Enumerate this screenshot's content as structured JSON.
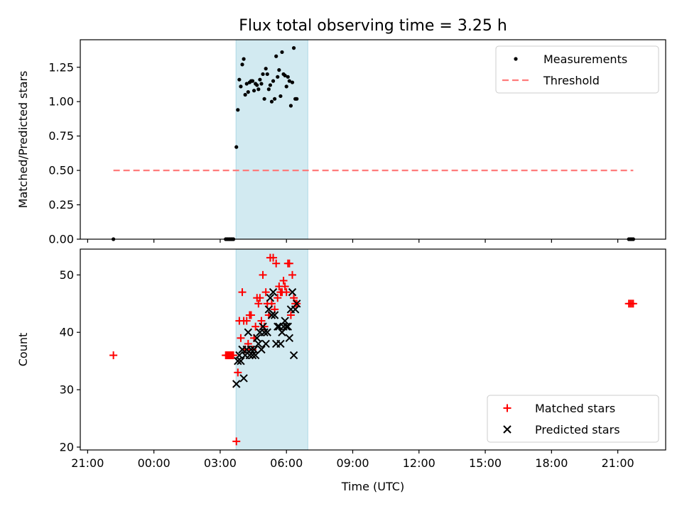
{
  "chart_data": [
    {
      "type": "scatter",
      "title": "Flux total observing time = 3.25 h",
      "xlabel": "",
      "ylabel": "Matched/Predicted stars",
      "xlim": [
        "2023-01-01T20:40",
        "2023-01-02T23:10"
      ],
      "ylim": [
        0,
        1.45
      ],
      "x_ticks": [
        "21:00",
        "00:00",
        "03:00",
        "06:00",
        "09:00",
        "12:00",
        "15:00",
        "18:00",
        "21:00"
      ],
      "y_ticks": [
        "0.00",
        "0.25",
        "0.50",
        "0.75",
        "1.00",
        "1.25"
      ],
      "shaded_span": [
        "2023-01-02T03:43",
        "2023-01-02T06:58"
      ],
      "legend_position": "upper right",
      "legend": [
        "Measurements",
        "Threshold"
      ],
      "series": [
        {
          "name": "Measurements",
          "marker": "dot",
          "color": "#000000",
          "points": [
            [
              "2023-01-01T22:10",
              0.0
            ],
            [
              "2023-01-02T03:15",
              0.0
            ],
            [
              "2023-01-02T03:18",
              0.0
            ],
            [
              "2023-01-02T03:21",
              0.0
            ],
            [
              "2023-01-02T03:24",
              0.0
            ],
            [
              "2023-01-02T03:27",
              0.0
            ],
            [
              "2023-01-02T03:30",
              0.0
            ],
            [
              "2023-01-02T03:33",
              0.0
            ],
            [
              "2023-01-02T03:36",
              0.0
            ],
            [
              "2023-01-02T03:44",
              0.67
            ],
            [
              "2023-01-02T03:48",
              0.94
            ],
            [
              "2023-01-02T03:52",
              1.16
            ],
            [
              "2023-01-02T03:56",
              1.11
            ],
            [
              "2023-01-02T04:00",
              1.27
            ],
            [
              "2023-01-02T04:04",
              1.31
            ],
            [
              "2023-01-02T04:08",
              1.05
            ],
            [
              "2023-01-02T04:12",
              1.13
            ],
            [
              "2023-01-02T04:16",
              1.07
            ],
            [
              "2023-01-02T04:20",
              1.14
            ],
            [
              "2023-01-02T04:24",
              1.15
            ],
            [
              "2023-01-02T04:28",
              1.15
            ],
            [
              "2023-01-02T04:32",
              1.08
            ],
            [
              "2023-01-02T04:36",
              1.13
            ],
            [
              "2023-01-02T04:40",
              1.12
            ],
            [
              "2023-01-02T04:44",
              1.09
            ],
            [
              "2023-01-02T04:48",
              1.16
            ],
            [
              "2023-01-02T04:52",
              1.13
            ],
            [
              "2023-01-02T04:56",
              1.2
            ],
            [
              "2023-01-02T05:00",
              1.02
            ],
            [
              "2023-01-02T05:04",
              1.24
            ],
            [
              "2023-01-02T05:08",
              1.2
            ],
            [
              "2023-01-02T05:12",
              1.09
            ],
            [
              "2023-01-02T05:16",
              1.12
            ],
            [
              "2023-01-02T05:20",
              1.0
            ],
            [
              "2023-01-02T05:24",
              1.15
            ],
            [
              "2023-01-02T05:28",
              1.02
            ],
            [
              "2023-01-02T05:32",
              1.33
            ],
            [
              "2023-01-02T05:36",
              1.18
            ],
            [
              "2023-01-02T05:40",
              1.23
            ],
            [
              "2023-01-02T05:44",
              1.04
            ],
            [
              "2023-01-02T05:48",
              1.36
            ],
            [
              "2023-01-02T05:52",
              1.2
            ],
            [
              "2023-01-02T05:56",
              1.19
            ],
            [
              "2023-01-02T06:00",
              1.11
            ],
            [
              "2023-01-02T06:04",
              1.18
            ],
            [
              "2023-01-02T06:08",
              1.15
            ],
            [
              "2023-01-02T06:12",
              0.97
            ],
            [
              "2023-01-02T06:16",
              1.14
            ],
            [
              "2023-01-02T06:20",
              1.39
            ],
            [
              "2023-01-02T06:24",
              1.02
            ],
            [
              "2023-01-02T06:28",
              1.02
            ],
            [
              "2023-01-02T21:30",
              0.0
            ],
            [
              "2023-01-02T21:34",
              0.0
            ],
            [
              "2023-01-02T21:38",
              0.0
            ],
            [
              "2023-01-02T21:42",
              0.0
            ]
          ]
        },
        {
          "name": "Threshold",
          "marker": "dashed-line",
          "color": "#ff7b7b",
          "points": [
            [
              "2023-01-01T22:10",
              0.5
            ],
            [
              "2023-01-02T21:42",
              0.5
            ]
          ]
        }
      ]
    },
    {
      "type": "scatter",
      "title": "",
      "xlabel": "Time (UTC)",
      "ylabel": "Count",
      "xlim": [
        "2023-01-01T20:40",
        "2023-01-02T23:10"
      ],
      "ylim": [
        19.5,
        54.5
      ],
      "x_ticks": [
        "21:00",
        "00:00",
        "03:00",
        "06:00",
        "09:00",
        "12:00",
        "15:00",
        "18:00",
        "21:00"
      ],
      "y_ticks": [
        "20",
        "30",
        "40",
        "50"
      ],
      "shaded_span": [
        "2023-01-02T03:43",
        "2023-01-02T06:58"
      ],
      "legend_position": "lower right",
      "legend": [
        "Matched stars",
        "Predicted stars"
      ],
      "series": [
        {
          "name": "Matched stars",
          "marker": "plus",
          "color": "#ff0000",
          "points": [
            [
              "2023-01-01T22:10",
              36
            ],
            [
              "2023-01-02T03:15",
              36
            ],
            [
              "2023-01-02T03:18",
              36
            ],
            [
              "2023-01-02T03:21",
              36
            ],
            [
              "2023-01-02T03:24",
              36
            ],
            [
              "2023-01-02T03:27",
              36
            ],
            [
              "2023-01-02T03:30",
              36
            ],
            [
              "2023-01-02T03:33",
              36
            ],
            [
              "2023-01-02T03:36",
              36
            ],
            [
              "2023-01-02T03:44",
              21
            ],
            [
              "2023-01-02T03:48",
              33
            ],
            [
              "2023-01-02T03:52",
              42
            ],
            [
              "2023-01-02T03:56",
              39
            ],
            [
              "2023-01-02T04:00",
              47
            ],
            [
              "2023-01-02T04:04",
              42
            ],
            [
              "2023-01-02T04:08",
              37
            ],
            [
              "2023-01-02T04:12",
              42
            ],
            [
              "2023-01-02T04:16",
              38
            ],
            [
              "2023-01-02T04:20",
              43
            ],
            [
              "2023-01-02T04:24",
              43
            ],
            [
              "2023-01-02T04:28",
              37
            ],
            [
              "2023-01-02T04:32",
              39
            ],
            [
              "2023-01-02T04:36",
              41
            ],
            [
              "2023-01-02T04:40",
              46
            ],
            [
              "2023-01-02T04:44",
              45
            ],
            [
              "2023-01-02T04:48",
              46
            ],
            [
              "2023-01-02T04:52",
              42
            ],
            [
              "2023-01-02T04:56",
              50
            ],
            [
              "2023-01-02T05:00",
              41
            ],
            [
              "2023-01-02T05:04",
              47
            ],
            [
              "2023-01-02T05:08",
              45
            ],
            [
              "2023-01-02T05:12",
              43
            ],
            [
              "2023-01-02T05:16",
              53
            ],
            [
              "2023-01-02T05:20",
              45
            ],
            [
              "2023-01-02T05:24",
              53
            ],
            [
              "2023-01-02T05:28",
              44
            ],
            [
              "2023-01-02T05:32",
              52
            ],
            [
              "2023-01-02T05:36",
              46
            ],
            [
              "2023-01-02T05:40",
              48
            ],
            [
              "2023-01-02T05:44",
              47
            ],
            [
              "2023-01-02T05:48",
              47
            ],
            [
              "2023-01-02T05:52",
              49
            ],
            [
              "2023-01-02T05:56",
              48
            ],
            [
              "2023-01-02T06:00",
              47
            ],
            [
              "2023-01-02T06:04",
              52
            ],
            [
              "2023-01-02T06:08",
              52
            ],
            [
              "2023-01-02T06:12",
              43
            ],
            [
              "2023-01-02T06:16",
              50
            ],
            [
              "2023-01-02T06:20",
              46
            ],
            [
              "2023-01-02T06:24",
              45
            ],
            [
              "2023-01-02T06:28",
              45
            ],
            [
              "2023-01-02T21:30",
              45
            ],
            [
              "2023-01-02T21:34",
              45
            ],
            [
              "2023-01-02T21:38",
              45
            ],
            [
              "2023-01-02T21:42",
              45
            ]
          ]
        },
        {
          "name": "Predicted stars",
          "marker": "x",
          "color": "#000000",
          "points": [
            [
              "2023-01-02T03:44",
              31
            ],
            [
              "2023-01-02T03:48",
              35
            ],
            [
              "2023-01-02T03:52",
              36
            ],
            [
              "2023-01-02T03:56",
              35
            ],
            [
              "2023-01-02T04:00",
              37
            ],
            [
              "2023-01-02T04:04",
              32
            ],
            [
              "2023-01-02T04:08",
              36
            ],
            [
              "2023-01-02T04:12",
              37
            ],
            [
              "2023-01-02T04:16",
              40
            ],
            [
              "2023-01-02T04:20",
              36
            ],
            [
              "2023-01-02T04:24",
              37
            ],
            [
              "2023-01-02T04:28",
              36
            ],
            [
              "2023-01-02T04:32",
              37
            ],
            [
              "2023-01-02T04:36",
              36
            ],
            [
              "2023-01-02T04:40",
              39
            ],
            [
              "2023-01-02T04:44",
              38
            ],
            [
              "2023-01-02T04:48",
              40
            ],
            [
              "2023-01-02T04:52",
              37
            ],
            [
              "2023-01-02T04:56",
              41
            ],
            [
              "2023-01-02T05:00",
              40
            ],
            [
              "2023-01-02T05:04",
              38
            ],
            [
              "2023-01-02T05:08",
              40
            ],
            [
              "2023-01-02T05:12",
              44
            ],
            [
              "2023-01-02T05:16",
              46
            ],
            [
              "2023-01-02T05:20",
              43
            ],
            [
              "2023-01-02T05:24",
              47
            ],
            [
              "2023-01-02T05:28",
              43
            ],
            [
              "2023-01-02T05:32",
              38
            ],
            [
              "2023-01-02T05:36",
              41
            ],
            [
              "2023-01-02T05:40",
              41
            ],
            [
              "2023-01-02T05:44",
              38
            ],
            [
              "2023-01-02T05:48",
              40
            ],
            [
              "2023-01-02T05:52",
              41
            ],
            [
              "2023-01-02T05:56",
              42
            ],
            [
              "2023-01-02T06:00",
              41
            ],
            [
              "2023-01-02T06:04",
              41
            ],
            [
              "2023-01-02T06:08",
              39
            ],
            [
              "2023-01-02T06:12",
              44
            ],
            [
              "2023-01-02T06:16",
              47
            ],
            [
              "2023-01-02T06:20",
              36
            ],
            [
              "2023-01-02T06:24",
              44
            ],
            [
              "2023-01-02T06:28",
              45
            ]
          ]
        }
      ]
    }
  ],
  "colors": {
    "shaded_span": "#add8e6",
    "matched": "#ff0000",
    "predicted": "#000000",
    "threshold": "#ff7b7b"
  }
}
